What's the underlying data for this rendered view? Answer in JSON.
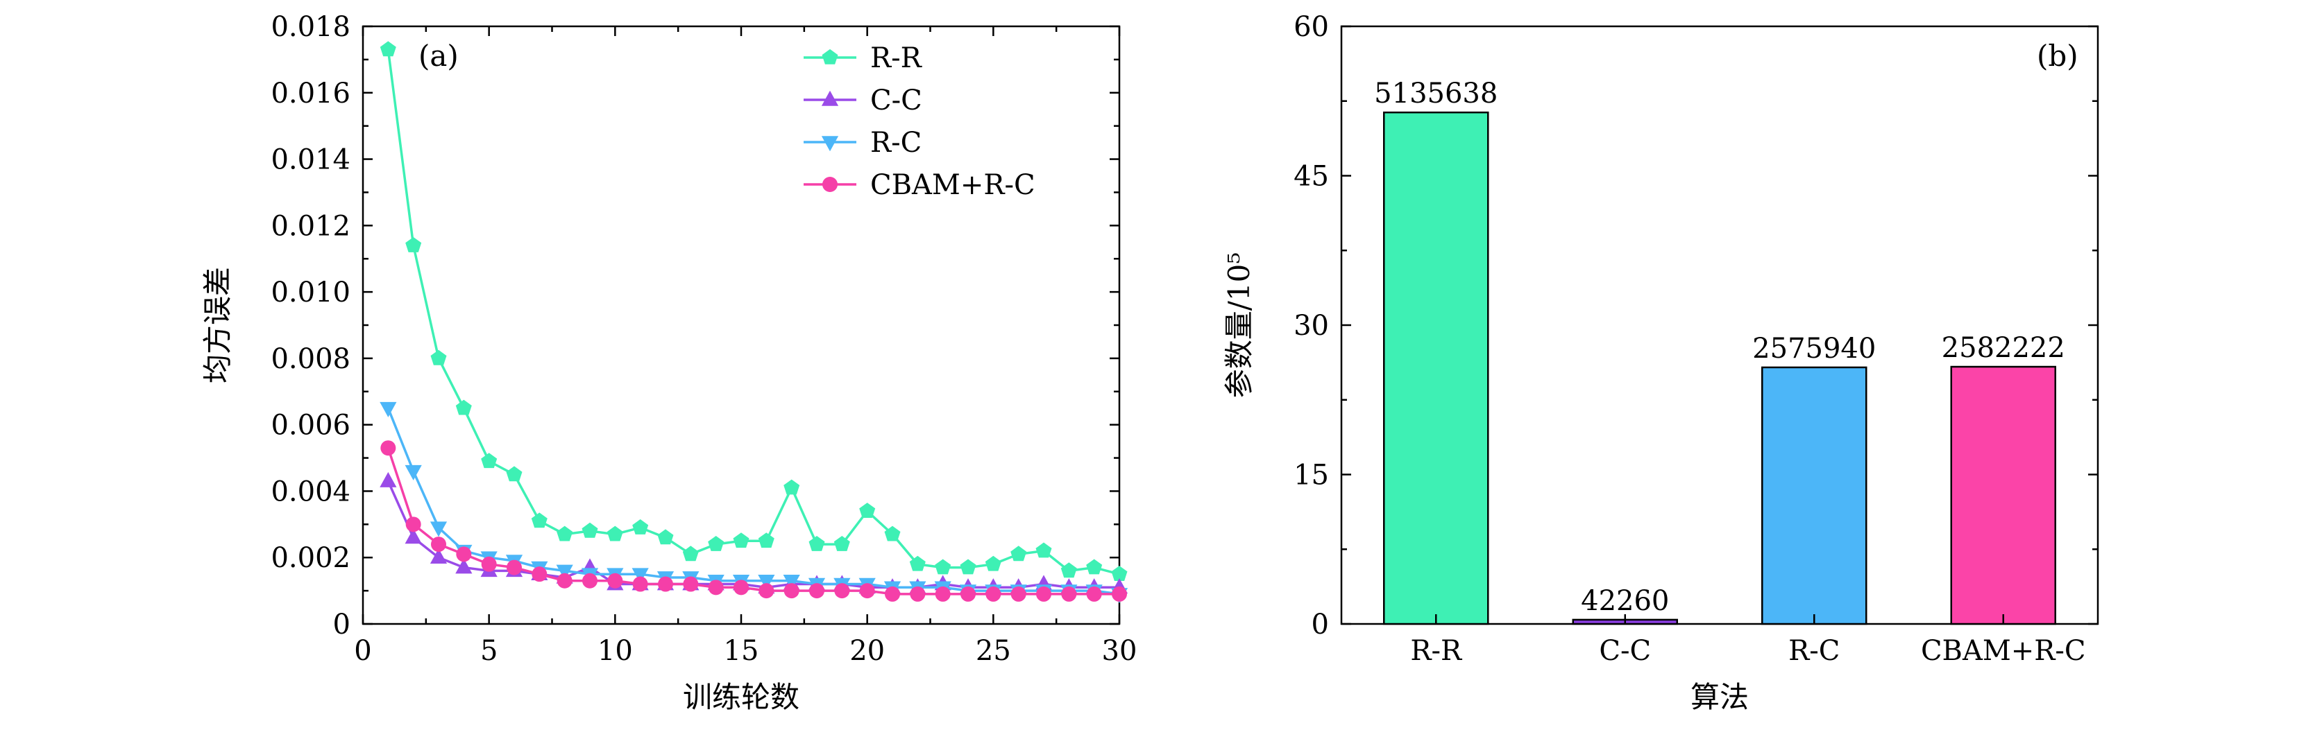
{
  "chart_data": [
    {
      "type": "line",
      "panel_label": "(a)",
      "xlabel": "训练轮数",
      "ylabel": "均方误差",
      "xlim": [
        0,
        30
      ],
      "ylim": [
        0,
        0.018
      ],
      "x_ticks": [
        "0",
        "5",
        "10",
        "15",
        "20",
        "25",
        "30"
      ],
      "y_ticks": [
        "0",
        "0.002",
        "0.004",
        "0.006",
        "0.008",
        "0.010",
        "0.012",
        "0.014",
        "0.016",
        "0.018"
      ],
      "legend_position": "top-right",
      "x": [
        1,
        2,
        3,
        4,
        5,
        6,
        7,
        8,
        9,
        10,
        11,
        12,
        13,
        14,
        15,
        16,
        17,
        18,
        19,
        20,
        21,
        22,
        23,
        24,
        25,
        26,
        27,
        28,
        29,
        30
      ],
      "series": [
        {
          "name": "R-R",
          "color": "#3ef0b4",
          "marker": "pentagon",
          "values": [
            0.0173,
            0.0114,
            0.008,
            0.0065,
            0.0049,
            0.0045,
            0.0031,
            0.0027,
            0.0028,
            0.0027,
            0.0029,
            0.0026,
            0.0021,
            0.0024,
            0.0025,
            0.0025,
            0.0041,
            0.0024,
            0.0024,
            0.0034,
            0.0027,
            0.0018,
            0.0017,
            0.0017,
            0.0018,
            0.0021,
            0.0022,
            0.0016,
            0.0017,
            0.0015
          ]
        },
        {
          "name": "C-C",
          "color": "#9a4be8",
          "marker": "triangle-up",
          "values": [
            0.0043,
            0.0026,
            0.002,
            0.0017,
            0.0016,
            0.0016,
            0.0015,
            0.0014,
            0.0017,
            0.0012,
            0.0012,
            0.0012,
            0.0012,
            0.0012,
            0.0012,
            0.0011,
            0.0012,
            0.0012,
            0.0012,
            0.0011,
            0.0011,
            0.0011,
            0.0012,
            0.0011,
            0.0011,
            0.0011,
            0.0012,
            0.0011,
            0.0011,
            0.0011
          ]
        },
        {
          "name": "R-C",
          "color": "#4cb6f8",
          "marker": "triangle-down",
          "values": [
            0.0065,
            0.0046,
            0.0029,
            0.0022,
            0.002,
            0.0019,
            0.0017,
            0.0016,
            0.0015,
            0.0015,
            0.0015,
            0.0014,
            0.0014,
            0.0013,
            0.0013,
            0.0013,
            0.0013,
            0.0012,
            0.0012,
            0.0012,
            0.0011,
            0.0011,
            0.0011,
            0.001,
            0.001,
            0.001,
            0.001,
            0.001,
            0.001,
            0.0009
          ]
        },
        {
          "name": "CBAM+R-C",
          "color": "#f53fa8",
          "marker": "circle",
          "values": [
            0.0053,
            0.003,
            0.0024,
            0.0021,
            0.0018,
            0.0017,
            0.0015,
            0.0013,
            0.0013,
            0.0013,
            0.0012,
            0.0012,
            0.0012,
            0.0011,
            0.0011,
            0.001,
            0.001,
            0.001,
            0.001,
            0.001,
            0.0009,
            0.0009,
            0.0009,
            0.0009,
            0.0009,
            0.0009,
            0.0009,
            0.0009,
            0.0009,
            0.0009
          ]
        }
      ]
    },
    {
      "type": "bar",
      "panel_label": "(b)",
      "xlabel": "算法",
      "ylabel": "参数量/10⁵",
      "ylim": [
        0,
        60
      ],
      "y_ticks": [
        "0",
        "15",
        "30",
        "45",
        "60"
      ],
      "categories": [
        "R-R",
        "C-C",
        "R-C",
        "CBAM+R-C"
      ],
      "values": [
        51.35638,
        0.4226,
        25.7594,
        25.82222
      ],
      "data_labels": [
        "5135638",
        "42260",
        "2575940",
        "2582222"
      ],
      "colors": [
        "#3ef0b4",
        "#8a3ee0",
        "#4cb6f8",
        "#fb44a8"
      ]
    }
  ]
}
